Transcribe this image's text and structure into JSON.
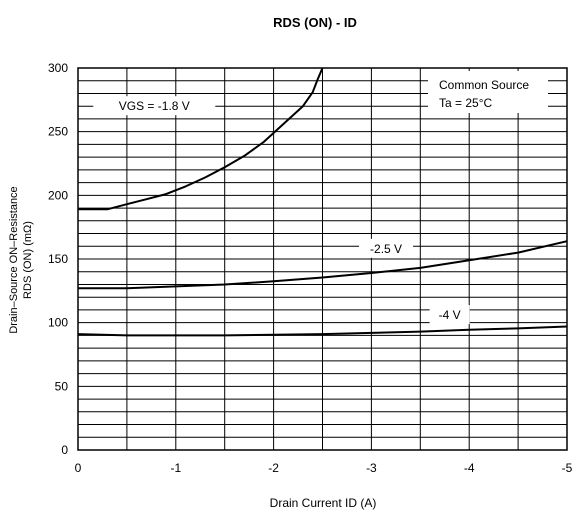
{
  "chart_data": {
    "type": "line",
    "title": "RDS (ON) - ID",
    "xlabel": "Drain Current  ID (A)",
    "ylabel_lines": [
      "Drain–Source ON–Resistance",
      "RDS (ON) (mΩ)"
    ],
    "xlim": [
      0,
      -5
    ],
    "ylim": [
      0,
      300
    ],
    "x_ticks": [
      0,
      -1,
      -2,
      -3,
      -4,
      -5
    ],
    "x_tick_labels": [
      "0",
      "-1",
      "-2",
      "-3",
      "-4",
      "-5"
    ],
    "y_ticks": [
      0,
      50,
      100,
      150,
      200,
      250,
      300
    ],
    "y_tick_labels": [
      "0",
      "50",
      "100",
      "150",
      "200",
      "250",
      "300"
    ],
    "grid": true,
    "annotation": {
      "line1": "Common Source",
      "line2": "Ta = 25°C"
    },
    "series": [
      {
        "name": "VGS = -1.8 V",
        "x": [
          0,
          -0.3,
          -0.5,
          -0.7,
          -0.9,
          -1.1,
          -1.3,
          -1.5,
          -1.7,
          -1.9,
          -2.1,
          -2.3,
          -2.4,
          -2.45,
          -2.5
        ],
        "y": [
          189,
          189,
          193,
          197,
          201,
          207,
          214,
          222,
          231,
          242,
          256,
          270,
          281,
          291,
          300
        ]
      },
      {
        "name": "-2.5 V",
        "x": [
          0,
          -0.5,
          -1,
          -1.5,
          -2,
          -2.5,
          -3,
          -3.5,
          -4,
          -4.5,
          -5
        ],
        "y": [
          127,
          127,
          128.5,
          130,
          132.5,
          135.5,
          139,
          143,
          149,
          155,
          164
        ]
      },
      {
        "name": "-4 V",
        "x": [
          0,
          -0.5,
          -1,
          -1.5,
          -2,
          -2.5,
          -3,
          -3.5,
          -4,
          -4.5,
          -5
        ],
        "y": [
          91,
          90,
          90,
          90,
          90.5,
          91,
          92,
          93,
          94.5,
          95.5,
          97
        ]
      }
    ]
  }
}
